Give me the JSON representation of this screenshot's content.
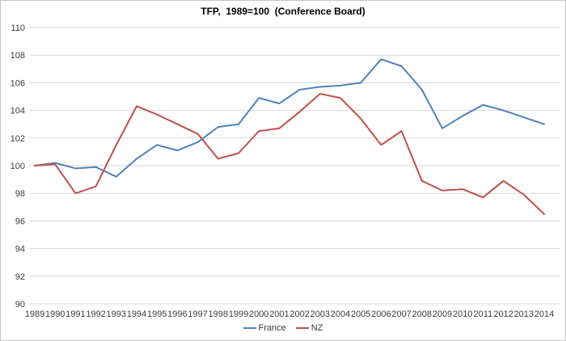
{
  "window": {
    "background": "#ffffff",
    "border_color": "#c6c6c6"
  },
  "chart_data": {
    "type": "line",
    "title": "TFP,  1989=100  (Conference Board)",
    "categories": [
      1989,
      1990,
      1991,
      1992,
      1993,
      1994,
      1995,
      1996,
      1997,
      1998,
      1999,
      2000,
      2001,
      2002,
      2003,
      2004,
      2005,
      2006,
      2007,
      2008,
      2009,
      2010,
      2011,
      2012,
      2013,
      2014
    ],
    "series": [
      {
        "name": "France",
        "color": "#4F81BD",
        "values": [
          100.0,
          100.2,
          99.8,
          99.9,
          99.2,
          100.5,
          101.5,
          101.1,
          101.7,
          102.8,
          103.0,
          104.9,
          104.5,
          105.5,
          105.7,
          105.8,
          106.0,
          107.7,
          107.2,
          105.5,
          102.7,
          103.6,
          104.4,
          104.0,
          103.5,
          103.0
        ]
      },
      {
        "name": "NZ",
        "color": "#C0504D",
        "values": [
          100.0,
          100.1,
          98.0,
          98.5,
          101.5,
          104.3,
          103.7,
          103.0,
          102.3,
          100.5,
          100.9,
          102.5,
          102.7,
          103.9,
          105.2,
          104.9,
          103.4,
          101.5,
          102.5,
          98.9,
          98.2,
          98.3,
          97.7,
          98.9,
          97.9,
          96.5
        ]
      }
    ],
    "ylim": [
      90,
      110
    ],
    "yticks": [
      110,
      108,
      106,
      104,
      102,
      100,
      98,
      96,
      94,
      92,
      90
    ],
    "xlabel": "",
    "ylabel": "",
    "grid": true,
    "gridline_color": "#d7d7d7",
    "axis_text_color": "#3b3b3b",
    "legend_position": "bottom"
  }
}
